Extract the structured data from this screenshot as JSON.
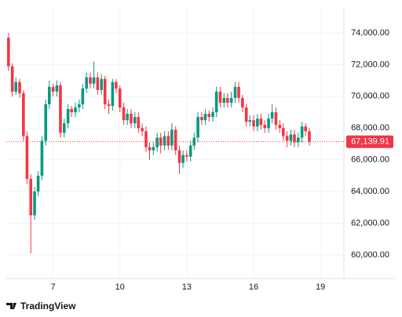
{
  "chart_data": {
    "type": "candlestick",
    "x": [
      5,
      5.17,
      5.33,
      5.5,
      5.67,
      5.83,
      6,
      6.17,
      6.33,
      6.5,
      6.67,
      6.83,
      7,
      7.17,
      7.33,
      7.5,
      7.67,
      7.83,
      8,
      8.17,
      8.33,
      8.5,
      8.67,
      8.83,
      9,
      9.17,
      9.33,
      9.5,
      9.67,
      9.83,
      10,
      10.17,
      10.33,
      10.5,
      10.67,
      10.83,
      11,
      11.17,
      11.33,
      11.5,
      11.67,
      11.83,
      12,
      12.17,
      12.33,
      12.5,
      12.67,
      12.83,
      13,
      13.17,
      13.33,
      13.5,
      13.67,
      13.83,
      14,
      14.17,
      14.33,
      14.5,
      14.67,
      14.83,
      15,
      15.17,
      15.33,
      15.5,
      15.67,
      15.83,
      16,
      16.17,
      16.33,
      16.5,
      16.67,
      16.83,
      17,
      17.17,
      17.33,
      17.5,
      17.67,
      17.83,
      18,
      18.17,
      18.33,
      18.5
    ],
    "open": [
      73700,
      71900,
      70300,
      70900,
      70200,
      67500,
      64800,
      62500,
      64000,
      65000,
      67200,
      69500,
      70600,
      70300,
      70700,
      67700,
      68300,
      69200,
      69000,
      69300,
      69500,
      70500,
      71200,
      70800,
      71200,
      70400,
      71100,
      69500,
      69400,
      70900,
      70500,
      69300,
      68500,
      68900,
      68300,
      68700,
      68000,
      67800,
      66800,
      66600,
      66800,
      67400,
      66900,
      67500,
      66900,
      67900,
      66600,
      65800,
      66300,
      66200,
      66900,
      67400,
      68700,
      68500,
      68900,
      68700,
      69000,
      70300,
      69600,
      69900,
      69600,
      69900,
      70600,
      69900,
      69300,
      68400,
      68500,
      68100,
      68600,
      68200,
      68000,
      68600,
      69000,
      68200,
      68000,
      67500,
      67200,
      67600,
      67100,
      67400,
      68100,
      67800
    ],
    "high": [
      74000,
      72100,
      71200,
      71100,
      70400,
      67800,
      65100,
      64300,
      65300,
      67500,
      69800,
      71000,
      70800,
      71000,
      70900,
      68600,
      69500,
      69400,
      69600,
      69800,
      70800,
      71500,
      71500,
      72200,
      71500,
      71400,
      71300,
      69800,
      71100,
      71100,
      70700,
      69600,
      69200,
      69200,
      69000,
      69000,
      68300,
      68100,
      67100,
      67100,
      67700,
      67700,
      67800,
      67800,
      68300,
      68100,
      66900,
      66600,
      66600,
      67200,
      67700,
      69000,
      69000,
      69200,
      69100,
      69300,
      70600,
      70600,
      70200,
      70200,
      70300,
      70900,
      70900,
      70100,
      69500,
      68800,
      68800,
      68900,
      68900,
      68500,
      68900,
      69500,
      69300,
      68500,
      68300,
      67800,
      67900,
      67900,
      67700,
      68400,
      68300,
      68000
    ],
    "low": [
      71600,
      70000,
      70100,
      69900,
      67200,
      64500,
      60100,
      62200,
      63700,
      64700,
      66900,
      69200,
      70000,
      70000,
      67400,
      67400,
      68000,
      68700,
      68700,
      69000,
      69200,
      70200,
      70500,
      70500,
      70100,
      70100,
      69200,
      68900,
      69100,
      70200,
      69000,
      68200,
      68200,
      68000,
      68000,
      67700,
      67500,
      66500,
      66000,
      66300,
      66500,
      66400,
      66600,
      66600,
      66600,
      66300,
      65100,
      65500,
      65900,
      65900,
      66600,
      67100,
      68200,
      68200,
      68400,
      68400,
      68700,
      69300,
      69300,
      69300,
      69300,
      69600,
      69600,
      69000,
      68100,
      68100,
      67800,
      67800,
      67900,
      67700,
      67700,
      68300,
      67900,
      67700,
      67200,
      66800,
      66900,
      66800,
      66800,
      67100,
      67500,
      66900
    ],
    "close": [
      71900,
      70300,
      70900,
      70200,
      67500,
      64800,
      62500,
      64000,
      65000,
      67200,
      69500,
      70600,
      70300,
      70700,
      67700,
      68300,
      69200,
      69000,
      69300,
      69500,
      70500,
      71200,
      70800,
      71200,
      70400,
      71100,
      69500,
      69400,
      70900,
      70500,
      69300,
      68500,
      68900,
      68300,
      68700,
      68000,
      67800,
      66800,
      66600,
      66800,
      67400,
      66900,
      67500,
      66900,
      67900,
      66600,
      65800,
      66300,
      66200,
      66900,
      67400,
      68700,
      68500,
      68900,
      68700,
      69000,
      70300,
      69600,
      69900,
      69600,
      69900,
      70600,
      69900,
      69300,
      68400,
      68500,
      68100,
      68600,
      68200,
      68000,
      68600,
      69000,
      68200,
      68000,
      67500,
      67200,
      67600,
      67100,
      67400,
      68100,
      67800,
      67139.91
    ],
    "up_color": "#089981",
    "down_color": "#f23645",
    "last_price": {
      "value": 67139.91,
      "label": "67,139.91"
    },
    "xlim": [
      4.9,
      20.05
    ],
    "xticks": [
      7,
      10,
      13,
      16,
      19
    ],
    "ylim": [
      58515,
      75680
    ],
    "yticks": [
      {
        "value": 60000,
        "label": "60,000.00"
      },
      {
        "value": 62000,
        "label": "62,000.00"
      },
      {
        "value": 64000,
        "label": "64,000.00"
      },
      {
        "value": 66000,
        "label": "66,000.00"
      },
      {
        "value": 68000,
        "label": "68,000.00"
      },
      {
        "value": 70000,
        "label": "70,000.00"
      },
      {
        "value": 72000,
        "label": "72,000.00"
      },
      {
        "value": 74000,
        "label": "74,000.00"
      }
    ],
    "grid": true,
    "watermark": "TradingView"
  }
}
